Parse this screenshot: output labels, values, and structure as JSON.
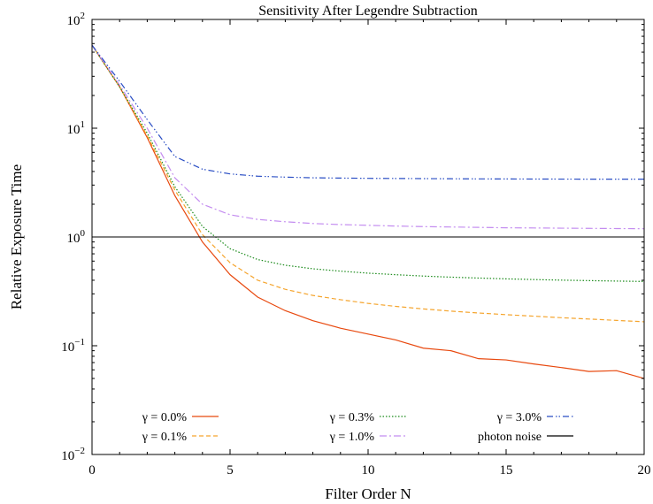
{
  "chart_data": {
    "type": "line",
    "title": "Sensitivity After Legendre Subtraction",
    "xlabel": "Filter Order N",
    "ylabel": "Relative Exposure Time",
    "xlim": [
      0,
      20
    ],
    "ylim": [
      0.01,
      100
    ],
    "yscale": "log",
    "x_ticks": [
      0,
      5,
      10,
      15,
      20
    ],
    "x_tick_labels": [
      "0",
      "5",
      "10",
      "15",
      "20"
    ],
    "y_ticks": [
      0.01,
      0.1,
      1,
      10,
      100
    ],
    "y_tick_labels": [
      {
        "base": "10",
        "exp": "−2"
      },
      {
        "base": "10",
        "exp": "−1"
      },
      {
        "base": "10",
        "exp": "0"
      },
      {
        "base": "10",
        "exp": "1"
      },
      {
        "base": "10",
        "exp": "2"
      }
    ],
    "grid": false,
    "legend_position": "bottom",
    "x": [
      0,
      1,
      2,
      3,
      4,
      5,
      6,
      7,
      8,
      9,
      10,
      11,
      12,
      13,
      14,
      15,
      16,
      17,
      18,
      19,
      20
    ],
    "series": [
      {
        "name": "γ = 0.0%",
        "color": "#e8490f",
        "dash": "solid",
        "values": [
          58,
          24,
          8.2,
          2.4,
          0.9,
          0.45,
          0.28,
          0.21,
          0.17,
          0.145,
          0.128,
          0.113,
          0.095,
          0.09,
          0.076,
          0.074,
          0.068,
          0.063,
          0.058,
          0.059,
          0.05
        ]
      },
      {
        "name": "γ = 0.1%",
        "color": "#f5a52e",
        "dash": "dashed",
        "values": [
          58,
          24,
          8.5,
          2.7,
          1.05,
          0.58,
          0.4,
          0.33,
          0.29,
          0.265,
          0.245,
          0.23,
          0.218,
          0.208,
          0.2,
          0.193,
          0.187,
          0.181,
          0.176,
          0.171,
          0.166
        ]
      },
      {
        "name": "γ = 0.3%",
        "color": "#1a8a1a",
        "dash": "dotted",
        "values": [
          58,
          24,
          9,
          2.9,
          1.25,
          0.78,
          0.62,
          0.55,
          0.51,
          0.485,
          0.465,
          0.45,
          0.437,
          0.427,
          0.419,
          0.412,
          0.406,
          0.401,
          0.397,
          0.393,
          0.39
        ]
      },
      {
        "name": "γ = 1.0%",
        "color": "#c48df0",
        "dash": "dashdot",
        "values": [
          58,
          25,
          10,
          3.5,
          2.0,
          1.6,
          1.45,
          1.38,
          1.33,
          1.3,
          1.28,
          1.26,
          1.245,
          1.235,
          1.225,
          1.215,
          1.21,
          1.205,
          1.2,
          1.195,
          1.19
        ]
      },
      {
        "name": "γ = 3.0%",
        "color": "#2a4ec4",
        "dash": "dashdotdot",
        "values": [
          58,
          27,
          12,
          5.5,
          4.2,
          3.8,
          3.62,
          3.55,
          3.5,
          3.48,
          3.46,
          3.45,
          3.44,
          3.43,
          3.42,
          3.415,
          3.41,
          3.405,
          3.4,
          3.4,
          3.4
        ]
      },
      {
        "name": "photon noise",
        "color": "#000000",
        "dash": "solid",
        "values": [
          1,
          1,
          1,
          1,
          1,
          1,
          1,
          1,
          1,
          1,
          1,
          1,
          1,
          1,
          1,
          1,
          1,
          1,
          1,
          1,
          1
        ]
      }
    ]
  }
}
